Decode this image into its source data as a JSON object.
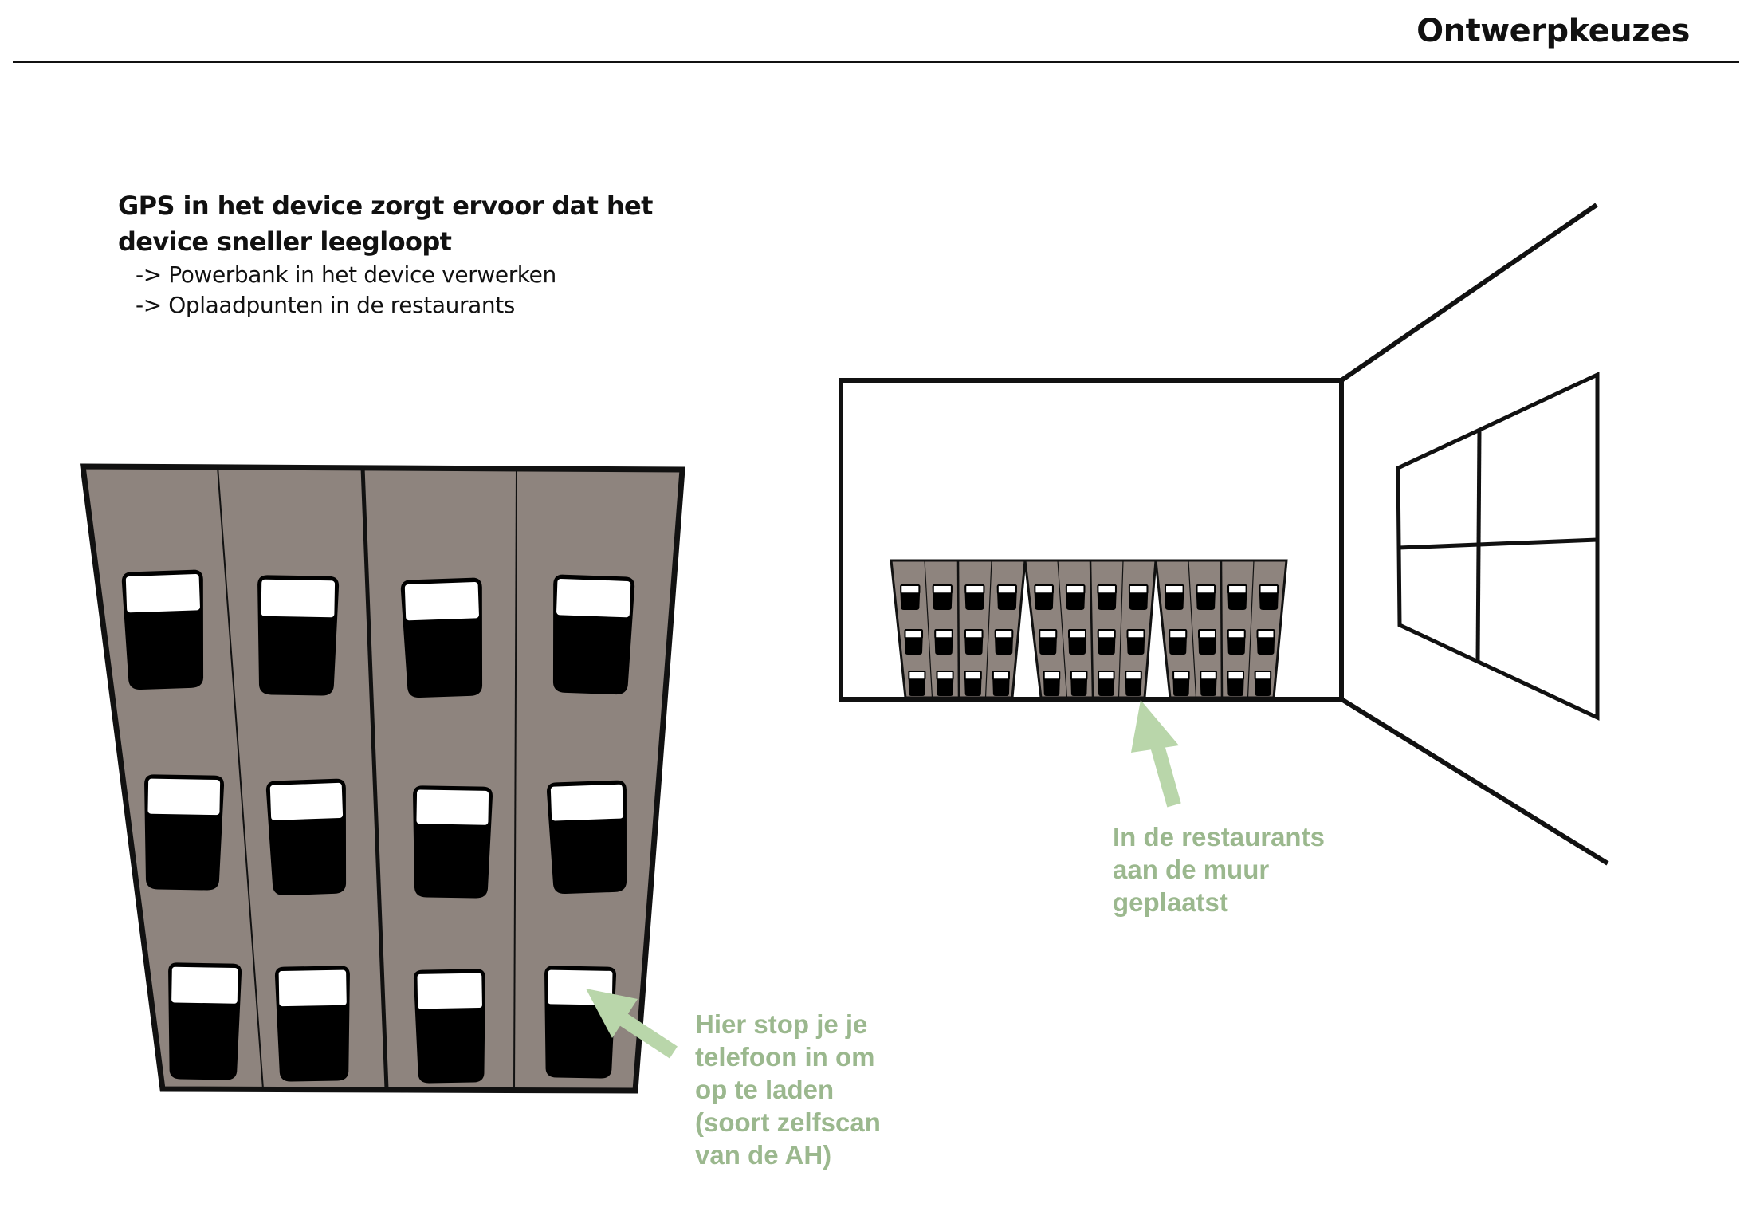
{
  "page": {
    "title": "Ontwerpkeuzes"
  },
  "intro": {
    "heading_line1": "GPS in het device zorgt ervoor dat het",
    "heading_line2": "device sneller leegloopt",
    "bullets": [
      "-> Powerbank in het device verwerken",
      "-> Oplaadpunten in de restaurants"
    ]
  },
  "annotations": {
    "phone_slot": [
      "Hier stop je je",
      "telefoon in om",
      "op te laden",
      "(soort zelfscan",
      "van de AH)"
    ],
    "restaurant_wall": [
      "In de restaurants",
      "aan de muur",
      "geplaatst"
    ]
  },
  "colors": {
    "cabinet": "#8e847e",
    "outline": "#111111",
    "annotation": "#9bb88e",
    "arrow": "#b9d6aa"
  }
}
